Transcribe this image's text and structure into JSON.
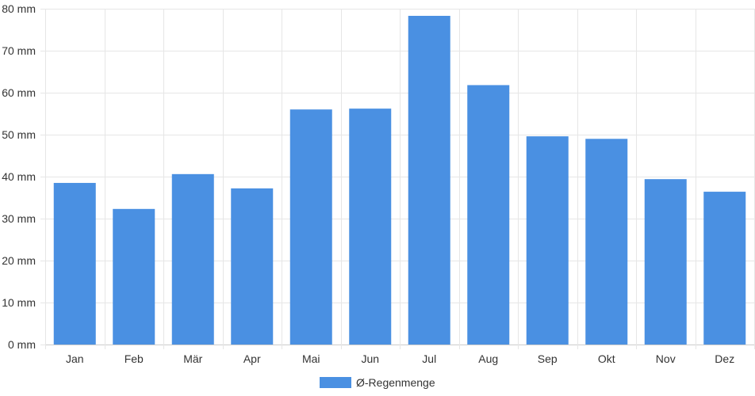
{
  "chart_data": {
    "type": "bar",
    "categories": [
      "Jan",
      "Feb",
      "Mär",
      "Apr",
      "Mai",
      "Jun",
      "Jul",
      "Aug",
      "Sep",
      "Okt",
      "Nov",
      "Dez"
    ],
    "series": [
      {
        "name": "Ø-Regenmenge",
        "values": [
          38.5,
          32.3,
          40.6,
          37.2,
          56.0,
          56.2,
          78.3,
          61.8,
          49.6,
          49.0,
          39.4,
          36.4
        ]
      }
    ],
    "ylim": [
      0,
      80
    ],
    "ytick_step": 10,
    "ytick_suffix": " mm",
    "grid": true,
    "legend_position": "bottom",
    "colors": {
      "bar": "#4a90e2",
      "grid": "#e6e6e6",
      "axis": "#cccccc",
      "text": "#333333"
    }
  }
}
